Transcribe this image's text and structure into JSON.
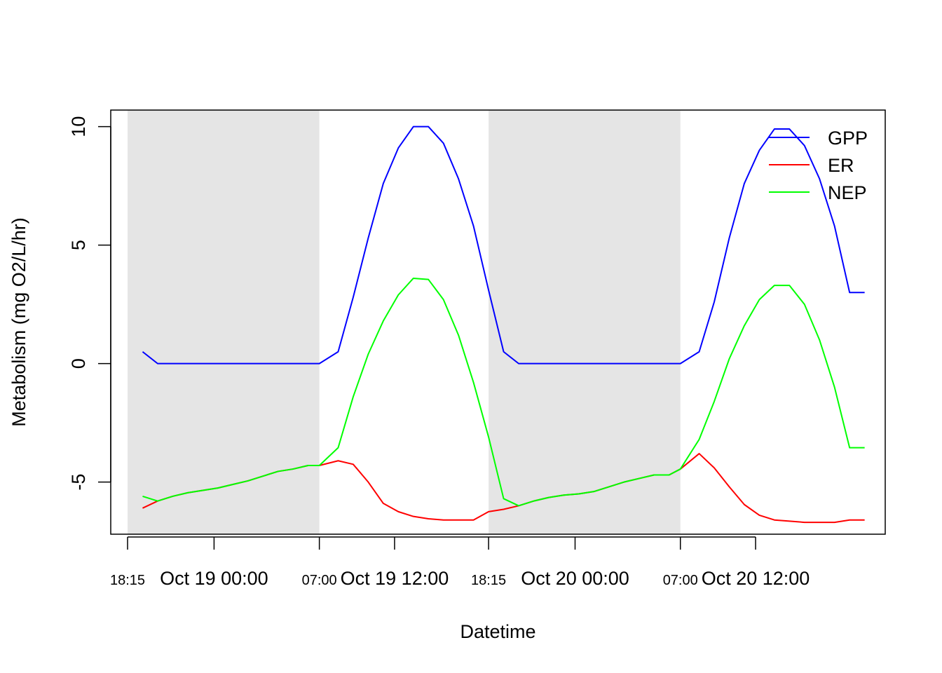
{
  "chart_data": {
    "type": "line",
    "title": "",
    "xlabel": "Datetime",
    "ylabel": "Metabolism (mg O2/L/hr)",
    "ylim": [
      -7.2,
      10.7
    ],
    "xlim": [
      "2021-10-18T18:15",
      "2021-10-20T19:30"
    ],
    "y_ticks": [
      {
        "value": -5,
        "label": "-5"
      },
      {
        "value": 0,
        "label": "0"
      },
      {
        "value": 5,
        "label": "5"
      },
      {
        "value": 10,
        "label": "10"
      }
    ],
    "x_ticks_major": [
      {
        "time": "2021-10-19T00:00",
        "label": "Oct 19 00:00"
      },
      {
        "time": "2021-10-19T12:00",
        "label": "Oct 19 12:00"
      },
      {
        "time": "2021-10-20T00:00",
        "label": "Oct 20 00:00"
      },
      {
        "time": "2021-10-20T12:00",
        "label": "Oct 20 12:00"
      }
    ],
    "x_ticks_minor": [
      {
        "time": "2021-10-18T18:15",
        "label": "18:15"
      },
      {
        "time": "2021-10-19T07:00",
        "label": "07:00"
      },
      {
        "time": "2021-10-19T18:15",
        "label": "18:15"
      },
      {
        "time": "2021-10-20T07:00",
        "label": "07:00"
      }
    ],
    "night_shading": [
      {
        "start": "2021-10-18T18:15",
        "end": "2021-10-19T07:00"
      },
      {
        "start": "2021-10-19T18:15",
        "end": "2021-10-20T07:00"
      }
    ],
    "legend_position": "top-right",
    "x": [
      "2021-10-18T19:15",
      "2021-10-18T20:15",
      "2021-10-18T21:15",
      "2021-10-18T22:15",
      "2021-10-18T23:15",
      "2021-10-19T00:15",
      "2021-10-19T01:15",
      "2021-10-19T02:15",
      "2021-10-19T03:15",
      "2021-10-19T04:15",
      "2021-10-19T05:15",
      "2021-10-19T06:15",
      "2021-10-19T07:00",
      "2021-10-19T08:15",
      "2021-10-19T09:15",
      "2021-10-19T10:15",
      "2021-10-19T11:15",
      "2021-10-19T12:15",
      "2021-10-19T13:15",
      "2021-10-19T14:15",
      "2021-10-19T15:15",
      "2021-10-19T16:15",
      "2021-10-19T17:15",
      "2021-10-19T18:15",
      "2021-10-19T19:15",
      "2021-10-19T20:15",
      "2021-10-19T21:15",
      "2021-10-19T22:15",
      "2021-10-19T23:15",
      "2021-10-20T00:15",
      "2021-10-20T01:15",
      "2021-10-20T02:15",
      "2021-10-20T03:15",
      "2021-10-20T04:15",
      "2021-10-20T05:15",
      "2021-10-20T06:15",
      "2021-10-20T07:00",
      "2021-10-20T08:15",
      "2021-10-20T09:15",
      "2021-10-20T10:15",
      "2021-10-20T11:15",
      "2021-10-20T12:15",
      "2021-10-20T13:15",
      "2021-10-20T14:15",
      "2021-10-20T15:15",
      "2021-10-20T16:15",
      "2021-10-20T17:15",
      "2021-10-20T18:15",
      "2021-10-20T19:15"
    ],
    "series": [
      {
        "name": "GPP",
        "color": "#0000ff",
        "values": [
          0.5,
          0.0,
          0.0,
          0.0,
          0.0,
          0.0,
          0.0,
          0.0,
          0.0,
          0.0,
          0.0,
          0.0,
          0.0,
          0.5,
          2.8,
          5.3,
          7.6,
          9.1,
          10.0,
          10.0,
          9.3,
          7.8,
          5.8,
          3.1,
          0.5,
          0.0,
          0.0,
          0.0,
          0.0,
          0.0,
          0.0,
          0.0,
          0.0,
          0.0,
          0.0,
          0.0,
          0.0,
          0.5,
          2.6,
          5.3,
          7.6,
          9.0,
          9.9,
          9.9,
          9.2,
          7.8,
          5.8,
          3.0,
          3.0
        ]
      },
      {
        "name": "ER",
        "color": "#ff0000",
        "values": [
          -6.1,
          -5.8,
          -5.6,
          -5.45,
          -5.35,
          -5.25,
          -5.1,
          -4.95,
          -4.75,
          -4.55,
          -4.45,
          -4.3,
          -4.3,
          -4.1,
          -4.25,
          -5.0,
          -5.9,
          -6.25,
          -6.45,
          -6.55,
          -6.6,
          -6.6,
          -6.6,
          -6.25,
          -6.15,
          -6.0,
          -5.8,
          -5.65,
          -5.55,
          -5.5,
          -5.4,
          -5.2,
          -5.0,
          -4.85,
          -4.7,
          -4.7,
          -4.45,
          -3.8,
          -4.4,
          -5.2,
          -5.95,
          -6.4,
          -6.6,
          -6.65,
          -6.7,
          -6.7,
          -6.7,
          -6.6,
          -6.6
        ]
      },
      {
        "name": "NEP",
        "color": "#00ff00",
        "values": [
          -5.6,
          -5.8,
          -5.6,
          -5.45,
          -5.35,
          -5.25,
          -5.1,
          -4.95,
          -4.75,
          -4.55,
          -4.45,
          -4.3,
          -4.3,
          -3.55,
          -1.4,
          0.4,
          1.8,
          2.9,
          3.6,
          3.55,
          2.7,
          1.2,
          -0.8,
          -3.1,
          -5.7,
          -6.0,
          -5.8,
          -5.65,
          -5.55,
          -5.5,
          -5.4,
          -5.2,
          -5.0,
          -4.85,
          -4.7,
          -4.7,
          -4.45,
          -3.2,
          -1.6,
          0.2,
          1.6,
          2.7,
          3.3,
          3.3,
          2.5,
          1.0,
          -1.0,
          -3.55,
          -3.55
        ]
      }
    ]
  }
}
